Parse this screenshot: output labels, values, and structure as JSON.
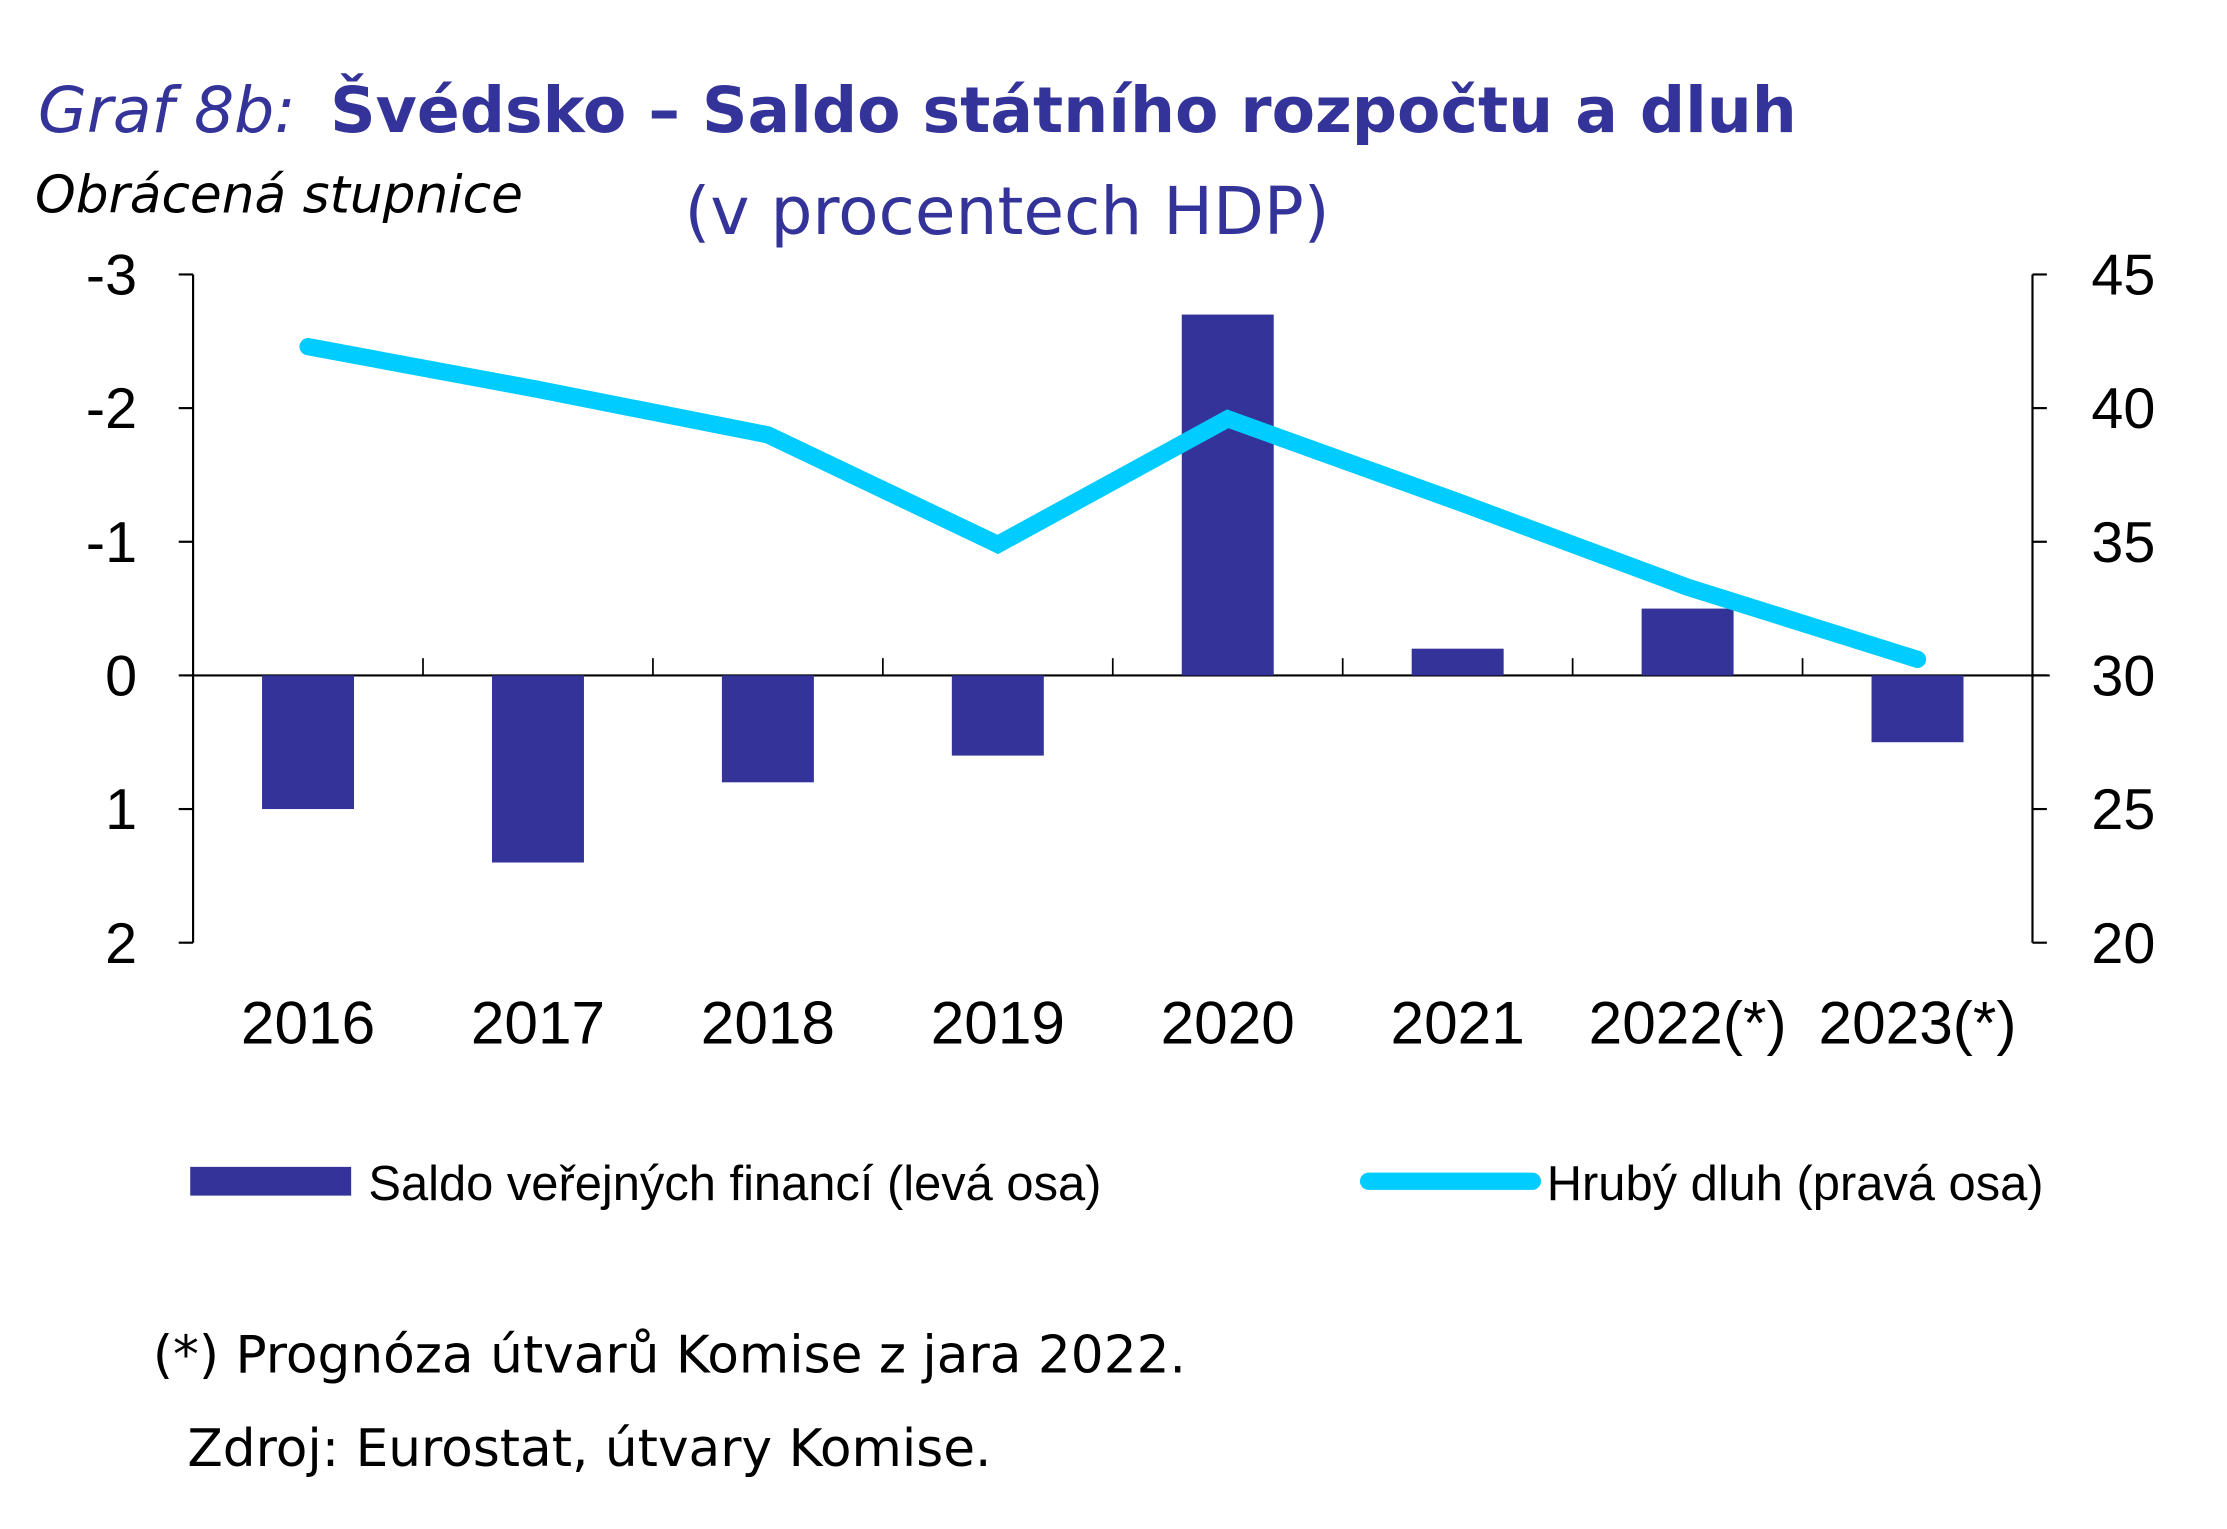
{
  "chart_data": {
    "type": "bar+line",
    "title_prefix": "Graf 8b:",
    "title": "Švédsko – Saldo státního rozpočtu a dluh",
    "subtitle": "(v procentech HDP)",
    "left_axis_note": "Obrácená stupnice",
    "categories": [
      "2016",
      "2017",
      "2018",
      "2019",
      "2020",
      "2021",
      "2022(*)",
      "2023(*)"
    ],
    "series": [
      {
        "name": "Saldo veřejných financí (levá osa)",
        "type": "bar",
        "axis": "left",
        "color": "#333399",
        "values": [
          1.0,
          1.4,
          0.8,
          0.6,
          -2.7,
          -0.2,
          -0.5,
          0.5
        ]
      },
      {
        "name": "Hrubý dluh (pravá osa)",
        "type": "line",
        "axis": "right",
        "color": "#00CCFF",
        "values": [
          42.3,
          40.7,
          39.0,
          34.9,
          39.6,
          36.5,
          33.3,
          30.6
        ]
      }
    ],
    "left_axis": {
      "range": [
        -3,
        2
      ],
      "reversed": true,
      "ticks": [
        "-3",
        "-2",
        "-1",
        "0",
        "1",
        "2"
      ],
      "tick_values": [
        -3,
        -2,
        -1,
        0,
        1,
        2
      ]
    },
    "right_axis": {
      "range": [
        20,
        45
      ],
      "ticks": [
        "45",
        "40",
        "35",
        "30",
        "25",
        "20"
      ],
      "tick_values": [
        45,
        40,
        35,
        30,
        25,
        20
      ]
    },
    "legend_placement": "bottom",
    "footnote": "(*) Prognóza útvarů Komise z jara 2022.",
    "source": "Zdroj: Eurostat, útvary Komise."
  }
}
